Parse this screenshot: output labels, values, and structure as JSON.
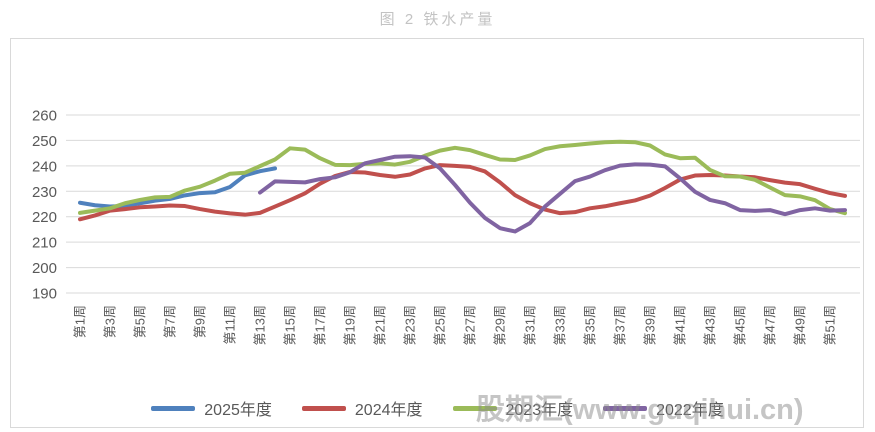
{
  "title": "图 2 铁水产量",
  "watermark": "股期汇(www.guqihui.cn)",
  "colors": {
    "grid": "#d9d9d9",
    "axis_text": "#595959",
    "title_text": "#c3c3c3",
    "series_2025": "#4F81BD",
    "series_2024": "#C0504D",
    "series_2023": "#9BBB59",
    "series_2022": "#8064A2"
  },
  "chart_data": {
    "type": "line",
    "title": "图 2 铁水产量",
    "xlabel": "",
    "ylabel": "",
    "ylim": [
      190,
      260
    ],
    "y_ticks": [
      260,
      250,
      240,
      230,
      220,
      210,
      200,
      190
    ],
    "x_weeks": [
      1,
      52
    ],
    "grid": true,
    "legend_position": "bottom",
    "x_tick_labels": [
      "第1周",
      "第3周",
      "第5周",
      "第7周",
      "第9周",
      "第11周",
      "第13周",
      "第15周",
      "第17周",
      "第19周",
      "第21周",
      "第23周",
      "第25周",
      "第27周",
      "第29周",
      "第31周",
      "第33周",
      "第35周",
      "第37周",
      "第39周",
      "第41周",
      "第43周",
      "第45周",
      "第47周",
      "第49周",
      "第51周"
    ],
    "series": [
      {
        "name": "2025年度",
        "color": "#4F81BD",
        "start_week": 1,
        "values": [
          225.5,
          224.5,
          224.0,
          224.2,
          225.3,
          226.3,
          227.0,
          228.4,
          229.3,
          229.6,
          231.7,
          236.3,
          237.9,
          239.0
        ]
      },
      {
        "name": "2024年度",
        "color": "#C0504D",
        "start_week": 1,
        "values": [
          219.0,
          220.5,
          222.4,
          223.0,
          223.7,
          224.0,
          224.4,
          224.2,
          223.0,
          222.0,
          221.3,
          220.8,
          221.5,
          224.0,
          226.5,
          229.2,
          233.0,
          236.0,
          237.6,
          237.4,
          236.4,
          235.7,
          236.6,
          239.0,
          240.3,
          240.0,
          239.6,
          237.8,
          233.5,
          228.5,
          225.3,
          222.8,
          221.4,
          221.8,
          223.3,
          224.1,
          225.3,
          226.4,
          228.3,
          231.3,
          234.6,
          236.2,
          236.4,
          236.2,
          235.8,
          235.5,
          234.4,
          233.4,
          232.8,
          231.0,
          229.3,
          228.2
        ]
      },
      {
        "name": "2023年度",
        "color": "#9BBB59",
        "start_week": 1,
        "values": [
          221.5,
          222.4,
          223.3,
          225.3,
          226.6,
          227.6,
          227.8,
          230.3,
          231.8,
          234.2,
          236.9,
          237.3,
          239.9,
          242.5,
          246.9,
          246.4,
          243.0,
          240.4,
          240.3,
          240.8,
          241.0,
          240.5,
          241.6,
          244.0,
          246.0,
          247.1,
          246.2,
          244.3,
          242.5,
          242.3,
          244.1,
          246.6,
          247.7,
          248.2,
          248.8,
          249.3,
          249.5,
          249.3,
          248.0,
          244.5,
          243.0,
          243.2,
          238.4,
          235.9,
          235.8,
          234.5,
          231.5,
          228.5,
          228.0,
          226.5,
          223.0,
          221.4
        ]
      },
      {
        "name": "2022年度",
        "color": "#8064A2",
        "start_week": 13,
        "values": [
          229.5,
          233.9,
          233.7,
          233.5,
          234.8,
          235.5,
          237.5,
          241.0,
          242.3,
          243.6,
          243.8,
          243.3,
          239.0,
          232.5,
          225.5,
          219.5,
          215.5,
          214.2,
          217.5,
          224.0,
          229.0,
          234.0,
          235.8,
          238.3,
          240.1,
          240.6,
          240.5,
          239.8,
          235.1,
          229.8,
          226.6,
          225.3,
          222.6,
          222.3,
          222.6,
          221.0,
          222.6,
          223.3,
          222.4,
          222.6
        ]
      }
    ]
  }
}
